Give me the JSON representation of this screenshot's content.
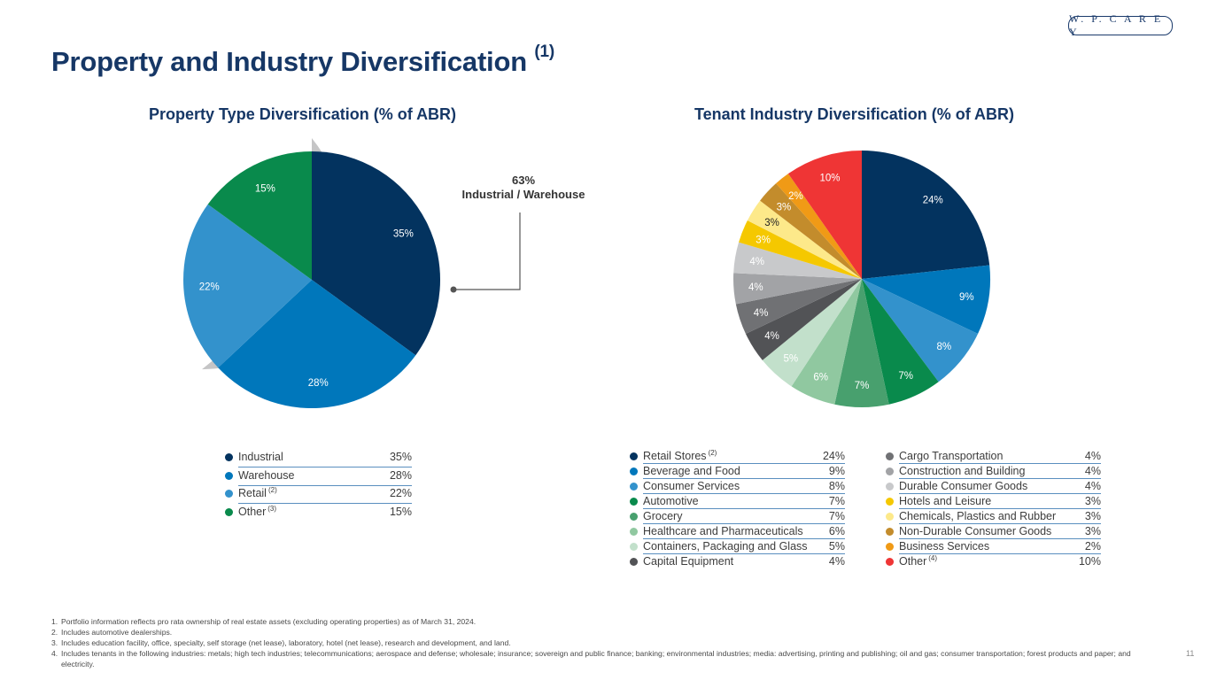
{
  "header": {
    "logo_text": "W. P. C A R E Y",
    "title": "Property and Industry Diversification",
    "title_note": "(1)"
  },
  "colors": {
    "navy": "#03335f",
    "blue": "#0077bb",
    "light_blue": "#3392cc",
    "green": "#098a4c",
    "ring_gray": "#c5c5c6"
  },
  "callout": {
    "percent": "63%",
    "label": "Industrial / Warehouse"
  },
  "chart_data": [
    {
      "type": "pie",
      "title": "Property Type Diversification (% of ABR)",
      "categories": [
        "Industrial",
        "Warehouse",
        "Retail",
        "Other"
      ],
      "category_notes": [
        "",
        "",
        "(2)",
        "(3)"
      ],
      "values": [
        35,
        28,
        22,
        15
      ],
      "value_labels": [
        "35%",
        "28%",
        "22%",
        "15%"
      ],
      "colors": [
        "#03335f",
        "#0077bb",
        "#3392cc",
        "#098a4c"
      ],
      "legend": "bottom"
    },
    {
      "type": "pie",
      "title": "Tenant Industry Diversification (% of ABR)",
      "categories": [
        "Retail Stores",
        "Beverage and Food",
        "Consumer Services",
        "Automotive",
        "Grocery",
        "Healthcare and Pharmaceuticals",
        "Containers, Packaging and Glass",
        "Capital Equipment",
        "Cargo Transportation",
        "Construction and Building",
        "Durable Consumer Goods",
        "Hotels and Leisure",
        "Chemicals, Plastics and Rubber",
        "Non-Durable Consumer Goods",
        "Business Services",
        "Other"
      ],
      "category_notes": [
        "(2)",
        "",
        "",
        "",
        "",
        "",
        "",
        "",
        "",
        "",
        "",
        "",
        "",
        "",
        "",
        "(4)"
      ],
      "values": [
        24,
        9,
        8,
        7,
        7,
        6,
        5,
        4,
        4,
        4,
        4,
        3,
        3,
        3,
        2,
        10
      ],
      "value_labels": [
        "24%",
        "9%",
        "8%",
        "7%",
        "7%",
        "6%",
        "5%",
        "4%",
        "4%",
        "4%",
        "4%",
        "3%",
        "3%",
        "3%",
        "2%",
        "10%"
      ],
      "colors": [
        "#03335f",
        "#0077bb",
        "#3392cc",
        "#098a4c",
        "#48a06e",
        "#90c8a0",
        "#c2e0cb",
        "#525356",
        "#707174",
        "#a2a3a6",
        "#c8c9cb",
        "#f5c800",
        "#fde98a",
        "#c38c2c",
        "#f09a16",
        "#ef3535"
      ],
      "label_colors": [
        "#ffffff",
        "#ffffff",
        "#ffffff",
        "#ffffff",
        "#ffffff",
        "#ffffff",
        "#ffffff",
        "#ffffff",
        "#ffffff",
        "#ffffff",
        "#ffffff",
        "#ffffff",
        "#222222",
        "#ffffff",
        "#ffffff",
        "#ffffff"
      ],
      "legend": "bottom"
    }
  ],
  "footnotes": [
    {
      "num": "1.",
      "text": "Portfolio information reflects pro rata ownership of real estate assets (excluding operating properties) as of March 31, 2024."
    },
    {
      "num": "2.",
      "text": "Includes automotive dealerships."
    },
    {
      "num": "3.",
      "text": "Includes education facility, office, specialty, self storage (net lease), laboratory, hotel (net lease), research and development, and land."
    },
    {
      "num": "4.",
      "text": "Includes tenants in the following industries: metals; high tech industries; telecommunications; aerospace and defense; wholesale; insurance; sovereign and public finance; banking; environmental industries; media: advertising, printing and publishing; oil and gas; consumer transportation; forest products and paper; and electricity."
    }
  ],
  "page_number": "11"
}
